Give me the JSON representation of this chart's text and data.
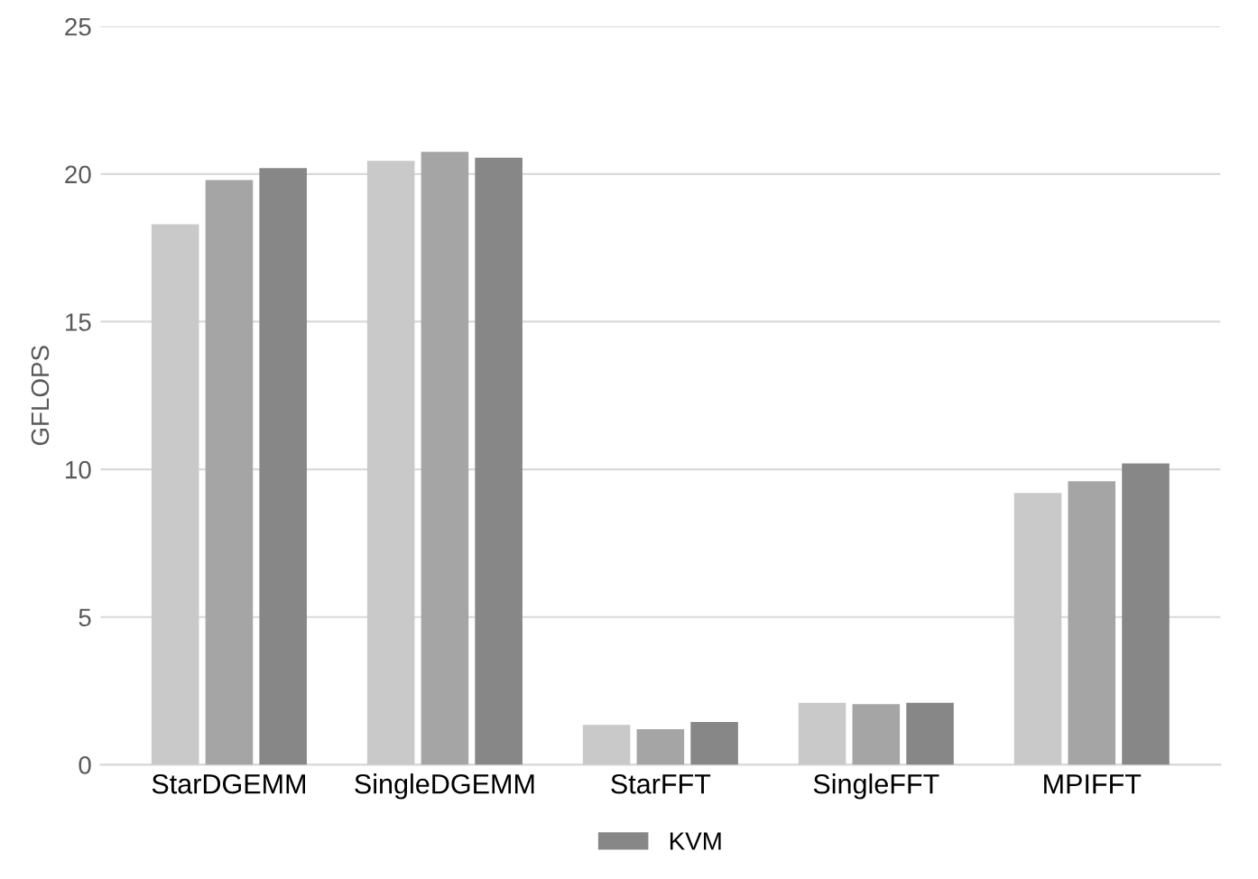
{
  "chart_data": {
    "type": "bar",
    "ylabel": "GFLOPS",
    "categories": [
      "StarDGEMM",
      "SingleDGEMM",
      "StarFFT",
      "SingleFFT",
      "MPIFFT"
    ],
    "series": [
      {
        "color": "#c9c9c9",
        "values": [
          18.3,
          20.45,
          1.35,
          2.1,
          9.2
        ]
      },
      {
        "color": "#a5a5a5",
        "values": [
          19.8,
          20.75,
          1.2,
          2.05,
          9.6
        ]
      },
      {
        "name": "KVM",
        "color": "#878787",
        "values": [
          20.2,
          20.55,
          1.45,
          2.1,
          10.2
        ]
      }
    ],
    "ylim": [
      0,
      25
    ],
    "yticks": [
      0,
      5,
      10,
      15,
      20,
      25
    ],
    "grid": "y",
    "legend": "bottom"
  }
}
